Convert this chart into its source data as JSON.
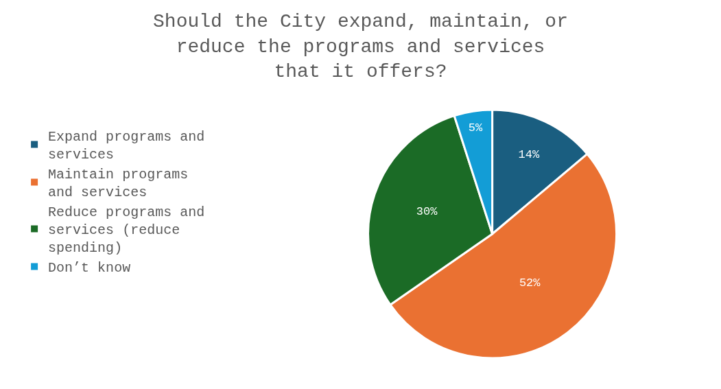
{
  "chart_data": {
    "type": "pie",
    "title": "Should the City expand, maintain, or reduce the programs and services that it offers?",
    "categories": [
      "Expand programs and services",
      "Maintain programs and services",
      "Reduce programs and services (reduce spending)",
      "Don’t know"
    ],
    "values": [
      14,
      52,
      30,
      5
    ],
    "colors": [
      "#1a5e80",
      "#ea7132",
      "#1b6b26",
      "#139dd6"
    ],
    "value_labels": [
      "14%",
      "52%",
      "30%",
      "5%"
    ],
    "legend": "left"
  }
}
